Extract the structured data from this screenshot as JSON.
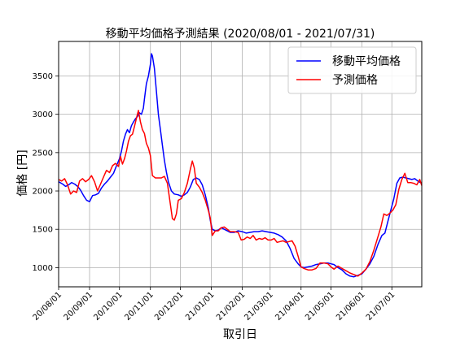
{
  "chart_data": {
    "type": "line",
    "title": "移動平均価格予測結果 (2020/08/01 - 2021/07/31)",
    "xlabel": "取引日",
    "ylabel": "価格 [円]",
    "grid": true,
    "legend_position": "top-right",
    "xlim": [
      0,
      364
    ],
    "ylim": [
      750,
      3950
    ],
    "y_ticks": [
      1000,
      1500,
      2000,
      2500,
      3000,
      3500
    ],
    "x_ticks": [
      {
        "day": 0,
        "label": "20/08/01"
      },
      {
        "day": 31,
        "label": "20/09/01"
      },
      {
        "day": 61,
        "label": "20/10/01"
      },
      {
        "day": 92,
        "label": "20/11/01"
      },
      {
        "day": 122,
        "label": "20/12/01"
      },
      {
        "day": 153,
        "label": "21/01/01"
      },
      {
        "day": 184,
        "label": "21/02/01"
      },
      {
        "day": 212,
        "label": "21/03/01"
      },
      {
        "day": 243,
        "label": "21/04/01"
      },
      {
        "day": 273,
        "label": "21/05/01"
      },
      {
        "day": 304,
        "label": "21/06/01"
      },
      {
        "day": 334,
        "label": "21/07/01"
      }
    ],
    "series": [
      {
        "name": "移動平均価格",
        "color": "#0000ff",
        "points": [
          [
            0,
            2120
          ],
          [
            4,
            2090
          ],
          [
            7,
            2060
          ],
          [
            10,
            2080
          ],
          [
            13,
            2110
          ],
          [
            16,
            2090
          ],
          [
            19,
            2060
          ],
          [
            22,
            2010
          ],
          [
            25,
            1940
          ],
          [
            28,
            1880
          ],
          [
            31,
            1860
          ],
          [
            34,
            1940
          ],
          [
            37,
            1950
          ],
          [
            40,
            1970
          ],
          [
            43,
            2040
          ],
          [
            46,
            2090
          ],
          [
            49,
            2130
          ],
          [
            52,
            2180
          ],
          [
            55,
            2230
          ],
          [
            58,
            2330
          ],
          [
            61,
            2420
          ],
          [
            63,
            2520
          ],
          [
            65,
            2650
          ],
          [
            67,
            2740
          ],
          [
            69,
            2800
          ],
          [
            71,
            2760
          ],
          [
            73,
            2850
          ],
          [
            75,
            2900
          ],
          [
            77,
            2940
          ],
          [
            79,
            2970
          ],
          [
            81,
            3020
          ],
          [
            83,
            3000
          ],
          [
            85,
            3080
          ],
          [
            86,
            3200
          ],
          [
            88,
            3400
          ],
          [
            90,
            3500
          ],
          [
            92,
            3650
          ],
          [
            93,
            3790
          ],
          [
            94,
            3760
          ],
          [
            96,
            3600
          ],
          [
            98,
            3300
          ],
          [
            100,
            3000
          ],
          [
            102,
            2800
          ],
          [
            104,
            2600
          ],
          [
            106,
            2400
          ],
          [
            108,
            2250
          ],
          [
            110,
            2120
          ],
          [
            113,
            2000
          ],
          [
            116,
            1960
          ],
          [
            120,
            1950
          ],
          [
            123,
            1930
          ],
          [
            126,
            1950
          ],
          [
            129,
            1980
          ],
          [
            132,
            2050
          ],
          [
            135,
            2150
          ],
          [
            138,
            2170
          ],
          [
            141,
            2150
          ],
          [
            144,
            2080
          ],
          [
            147,
            1950
          ],
          [
            150,
            1780
          ],
          [
            152,
            1620
          ],
          [
            154,
            1500
          ],
          [
            157,
            1480
          ],
          [
            160,
            1490
          ],
          [
            163,
            1520
          ],
          [
            166,
            1500
          ],
          [
            169,
            1480
          ],
          [
            172,
            1460
          ],
          [
            176,
            1460
          ],
          [
            180,
            1480
          ],
          [
            184,
            1470
          ],
          [
            188,
            1450
          ],
          [
            192,
            1460
          ],
          [
            196,
            1470
          ],
          [
            200,
            1470
          ],
          [
            204,
            1480
          ],
          [
            208,
            1470
          ],
          [
            212,
            1460
          ],
          [
            216,
            1450
          ],
          [
            220,
            1430
          ],
          [
            224,
            1400
          ],
          [
            228,
            1350
          ],
          [
            232,
            1250
          ],
          [
            236,
            1120
          ],
          [
            240,
            1050
          ],
          [
            243,
            1010
          ],
          [
            246,
            1000
          ],
          [
            250,
            1010
          ],
          [
            254,
            1020
          ],
          [
            258,
            1040
          ],
          [
            262,
            1050
          ],
          [
            266,
            1060
          ],
          [
            270,
            1060
          ],
          [
            273,
            1050
          ],
          [
            276,
            1040
          ],
          [
            280,
            1000
          ],
          [
            284,
            970
          ],
          [
            288,
            920
          ],
          [
            292,
            890
          ],
          [
            296,
            880
          ],
          [
            300,
            900
          ],
          [
            304,
            920
          ],
          [
            308,
            980
          ],
          [
            312,
            1050
          ],
          [
            316,
            1150
          ],
          [
            320,
            1300
          ],
          [
            324,
            1420
          ],
          [
            327,
            1450
          ],
          [
            330,
            1600
          ],
          [
            333,
            1750
          ],
          [
            336,
            1900
          ],
          [
            339,
            2100
          ],
          [
            342,
            2170
          ],
          [
            345,
            2180
          ],
          [
            348,
            2170
          ],
          [
            351,
            2160
          ],
          [
            354,
            2150
          ],
          [
            357,
            2160
          ],
          [
            360,
            2130
          ],
          [
            364,
            2100
          ]
        ]
      },
      {
        "name": "予測価格",
        "color": "#ff0000",
        "points": [
          [
            0,
            2150
          ],
          [
            3,
            2130
          ],
          [
            6,
            2160
          ],
          [
            9,
            2080
          ],
          [
            12,
            1960
          ],
          [
            15,
            2000
          ],
          [
            18,
            1980
          ],
          [
            21,
            2130
          ],
          [
            24,
            2160
          ],
          [
            27,
            2120
          ],
          [
            30,
            2150
          ],
          [
            33,
            2200
          ],
          [
            36,
            2120
          ],
          [
            39,
            2000
          ],
          [
            42,
            2090
          ],
          [
            45,
            2180
          ],
          [
            48,
            2270
          ],
          [
            51,
            2240
          ],
          [
            54,
            2330
          ],
          [
            57,
            2360
          ],
          [
            60,
            2320
          ],
          [
            62,
            2450
          ],
          [
            64,
            2350
          ],
          [
            66,
            2420
          ],
          [
            68,
            2520
          ],
          [
            70,
            2650
          ],
          [
            72,
            2720
          ],
          [
            74,
            2740
          ],
          [
            76,
            2840
          ],
          [
            78,
            2950
          ],
          [
            80,
            3050
          ],
          [
            82,
            2900
          ],
          [
            84,
            2800
          ],
          [
            86,
            2750
          ],
          [
            88,
            2620
          ],
          [
            90,
            2560
          ],
          [
            92,
            2460
          ],
          [
            94,
            2200
          ],
          [
            97,
            2170
          ],
          [
            100,
            2170
          ],
          [
            103,
            2170
          ],
          [
            106,
            2190
          ],
          [
            109,
            2100
          ],
          [
            112,
            1830
          ],
          [
            114,
            1640
          ],
          [
            116,
            1620
          ],
          [
            118,
            1700
          ],
          [
            120,
            1880
          ],
          [
            123,
            1900
          ],
          [
            126,
            1980
          ],
          [
            129,
            2100
          ],
          [
            132,
            2280
          ],
          [
            134,
            2390
          ],
          [
            136,
            2300
          ],
          [
            138,
            2100
          ],
          [
            141,
            2050
          ],
          [
            144,
            1980
          ],
          [
            147,
            1880
          ],
          [
            150,
            1750
          ],
          [
            152,
            1650
          ],
          [
            154,
            1420
          ],
          [
            157,
            1480
          ],
          [
            160,
            1480
          ],
          [
            163,
            1520
          ],
          [
            166,
            1530
          ],
          [
            169,
            1500
          ],
          [
            172,
            1470
          ],
          [
            176,
            1470
          ],
          [
            180,
            1460
          ],
          [
            183,
            1360
          ],
          [
            186,
            1370
          ],
          [
            189,
            1400
          ],
          [
            192,
            1380
          ],
          [
            195,
            1420
          ],
          [
            198,
            1360
          ],
          [
            201,
            1380
          ],
          [
            204,
            1370
          ],
          [
            207,
            1390
          ],
          [
            210,
            1360
          ],
          [
            213,
            1360
          ],
          [
            216,
            1380
          ],
          [
            219,
            1330
          ],
          [
            222,
            1340
          ],
          [
            225,
            1350
          ],
          [
            228,
            1330
          ],
          [
            231,
            1340
          ],
          [
            234,
            1350
          ],
          [
            237,
            1280
          ],
          [
            240,
            1150
          ],
          [
            243,
            1010
          ],
          [
            246,
            990
          ],
          [
            250,
            970
          ],
          [
            254,
            970
          ],
          [
            258,
            990
          ],
          [
            262,
            1060
          ],
          [
            266,
            1060
          ],
          [
            270,
            1050
          ],
          [
            273,
            1010
          ],
          [
            276,
            980
          ],
          [
            280,
            1020
          ],
          [
            284,
            990
          ],
          [
            288,
            960
          ],
          [
            292,
            930
          ],
          [
            296,
            910
          ],
          [
            300,
            890
          ],
          [
            304,
            930
          ],
          [
            308,
            980
          ],
          [
            312,
            1080
          ],
          [
            316,
            1230
          ],
          [
            320,
            1400
          ],
          [
            323,
            1530
          ],
          [
            326,
            1700
          ],
          [
            329,
            1680
          ],
          [
            332,
            1710
          ],
          [
            335,
            1750
          ],
          [
            338,
            1820
          ],
          [
            341,
            2020
          ],
          [
            344,
            2150
          ],
          [
            347,
            2230
          ],
          [
            350,
            2110
          ],
          [
            353,
            2110
          ],
          [
            356,
            2100
          ],
          [
            359,
            2080
          ],
          [
            362,
            2150
          ],
          [
            364,
            2070
          ]
        ]
      }
    ]
  }
}
